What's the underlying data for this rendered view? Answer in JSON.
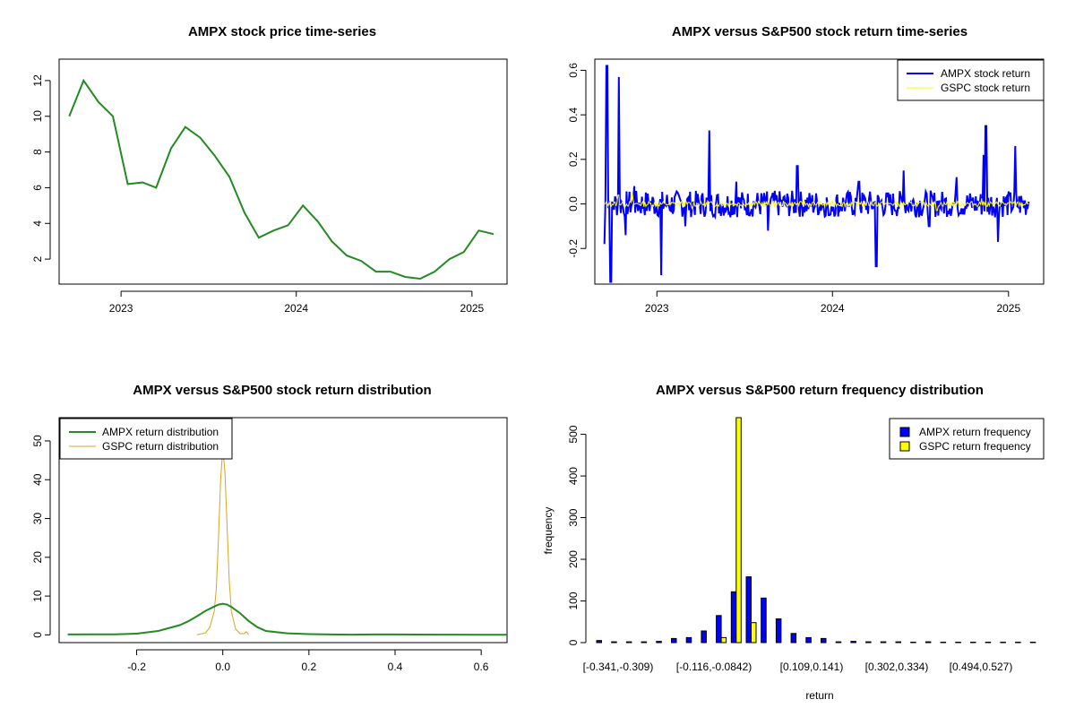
{
  "chart_data": [
    {
      "type": "line",
      "title": "AMPX stock price time-series",
      "xlabel": "",
      "ylabel": "",
      "x_ticks": [
        "2023",
        "2024",
        "2025"
      ],
      "y_ticks": [
        "2",
        "4",
        "6",
        "8",
        "10",
        "12"
      ],
      "ylim": [
        0.6,
        13.2
      ],
      "color": "#228B22",
      "x_dates": [
        "2022-09",
        "2022-10",
        "2022-11",
        "2022-12",
        "2023-01",
        "2023-02",
        "2023-03",
        "2023-04",
        "2023-05",
        "2023-06",
        "2023-07",
        "2023-08",
        "2023-09",
        "2023-10",
        "2023-11",
        "2023-12",
        "2024-01",
        "2024-02",
        "2024-03",
        "2024-04",
        "2024-05",
        "2024-06",
        "2024-07",
        "2024-08",
        "2024-09",
        "2024-10",
        "2024-11",
        "2024-12",
        "2025-01",
        "2025-02"
      ],
      "values": [
        10.0,
        12.0,
        10.8,
        10.0,
        6.2,
        6.3,
        6.0,
        8.2,
        9.4,
        8.8,
        7.8,
        6.6,
        4.6,
        3.2,
        3.6,
        3.9,
        5.0,
        4.1,
        3.0,
        2.2,
        1.9,
        1.3,
        1.3,
        1.0,
        0.9,
        1.3,
        2.0,
        2.4,
        3.6,
        3.4
      ]
    },
    {
      "type": "line",
      "title": "AMPX versus S&P500 stock return time-series",
      "xlabel": "",
      "ylabel": "",
      "x_ticks": [
        "2023",
        "2024",
        "2025"
      ],
      "y_ticks": [
        "-0.2",
        "0.0",
        "0.2",
        "0.4",
        "0.6"
      ],
      "ylim": [
        -0.36,
        0.65
      ],
      "legend_position": "top-right",
      "series": [
        {
          "name": "AMPX stock return",
          "color": "#0000FF",
          "x_dates": [
            "2022-09-14",
            "2022-09-19",
            "2022-09-27",
            "2022-10-14",
            "2022-10-28",
            "2022-11-15",
            "2023-01-10",
            "2023-03-01",
            "2023-04-20",
            "2023-06-15",
            "2023-08-20",
            "2023-10-20",
            "2023-12-25",
            "2024-02-25",
            "2024-04-01",
            "2024-05-28",
            "2024-07-20",
            "2024-09-15",
            "2024-11-10",
            "2024-11-15",
            "2024-12-10",
            "2025-01-15",
            "2025-02-12"
          ],
          "values": [
            -0.18,
            0.62,
            -0.35,
            0.57,
            -0.14,
            0.08,
            -0.32,
            -0.1,
            0.33,
            0.1,
            -0.12,
            0.17,
            -0.05,
            0.1,
            -0.28,
            0.15,
            -0.1,
            0.12,
            0.22,
            0.35,
            -0.17,
            0.26,
            0.01
          ]
        },
        {
          "name": "GSPC stock return",
          "color": "#FFFF00",
          "x_dates": [
            "2022-09-14",
            "2022-10-13",
            "2022-11-10",
            "2023-03-15",
            "2023-06-01",
            "2023-11-02",
            "2024-03-01",
            "2024-08-05",
            "2024-11-06",
            "2025-02-12"
          ],
          "values": [
            0.0,
            0.04,
            0.05,
            -0.02,
            0.015,
            0.02,
            0.01,
            -0.03,
            0.025,
            0.0
          ]
        }
      ]
    },
    {
      "type": "line",
      "title": "AMPX versus S&P500 stock return distribution",
      "xlabel": "",
      "ylabel": "",
      "x_ticks": [
        "-0.2",
        "0.0",
        "0.2",
        "0.4",
        "0.6"
      ],
      "y_ticks": [
        "0",
        "10",
        "20",
        "30",
        "40",
        "50"
      ],
      "xlim": [
        -0.38,
        0.66
      ],
      "ylim": [
        -2,
        56
      ],
      "legend_position": "top-left",
      "series": [
        {
          "name": "AMPX return distribution",
          "color": "#228B22",
          "x": [
            -0.36,
            -0.3,
            -0.25,
            -0.2,
            -0.15,
            -0.1,
            -0.08,
            -0.06,
            -0.04,
            -0.02,
            -0.01,
            0.0,
            0.01,
            0.02,
            0.04,
            0.06,
            0.08,
            0.1,
            0.15,
            0.2,
            0.25,
            0.3,
            0.35,
            0.4,
            0.5,
            0.6,
            0.66
          ],
          "values": [
            0.1,
            0.15,
            0.15,
            0.3,
            1.0,
            2.5,
            3.5,
            4.8,
            6.2,
            7.3,
            7.8,
            8.0,
            7.8,
            7.2,
            5.6,
            3.6,
            2.0,
            1.0,
            0.4,
            0.2,
            0.1,
            0.05,
            0.1,
            0.1,
            0.05,
            0.02,
            0.0
          ]
        },
        {
          "name": "GSPC return distribution",
          "color": "#DAA520",
          "x": [
            -0.06,
            -0.04,
            -0.03,
            -0.02,
            -0.015,
            -0.01,
            -0.005,
            0.0,
            0.005,
            0.01,
            0.015,
            0.02,
            0.03,
            0.04,
            0.05,
            0.055,
            0.06
          ],
          "values": [
            0.0,
            0.5,
            2.0,
            6.0,
            12.0,
            25.0,
            40.0,
            48.0,
            42.0,
            28.0,
            14.0,
            6.0,
            1.5,
            0.3,
            0.3,
            0.8,
            0.0
          ]
        }
      ]
    },
    {
      "type": "bar",
      "title": "AMPX versus S&P500 return frequency distribution",
      "xlabel": "return",
      "ylabel": "frequency",
      "y_ticks": [
        "0",
        "100",
        "200",
        "300",
        "400",
        "500"
      ],
      "ylim": [
        0,
        540
      ],
      "legend_position": "top-right",
      "categories": [
        "[-0.341,-0.309)",
        "",
        "",
        "",
        "[-0.116,-0.0842)",
        "",
        "",
        "",
        "",
        "",
        "[0.109,0.141)",
        "",
        "",
        "[0.302,0.334)",
        "",
        "",
        "[0.494,0.527)",
        "",
        "",
        "",
        "",
        "",
        "",
        "",
        "",
        "",
        "",
        "",
        "",
        ""
      ],
      "category_labels": [
        "[-0.341,-0.309)",
        "[-0.116,-0.0842)",
        "[0.109,0.141)",
        "[0.302,0.334)",
        "[0.494,0.527)"
      ],
      "series": [
        {
          "name": "AMPX return frequency",
          "color": "#0000FF",
          "values": [
            5,
            2,
            2,
            2,
            3,
            10,
            12,
            28,
            65,
            122,
            158,
            107,
            57,
            22,
            12,
            10,
            2,
            3,
            2,
            2,
            2,
            1,
            2,
            1,
            1,
            1,
            1,
            1,
            1,
            1
          ]
        },
        {
          "name": "GSPC return frequency",
          "color": "#FFFF00",
          "values": [
            0,
            0,
            0,
            0,
            0,
            0,
            0,
            0,
            12,
            540,
            48,
            0,
            0,
            0,
            0,
            0,
            0,
            0,
            0,
            0,
            0,
            0,
            0,
            0,
            0,
            0,
            0,
            0,
            0,
            0
          ]
        }
      ]
    }
  ]
}
